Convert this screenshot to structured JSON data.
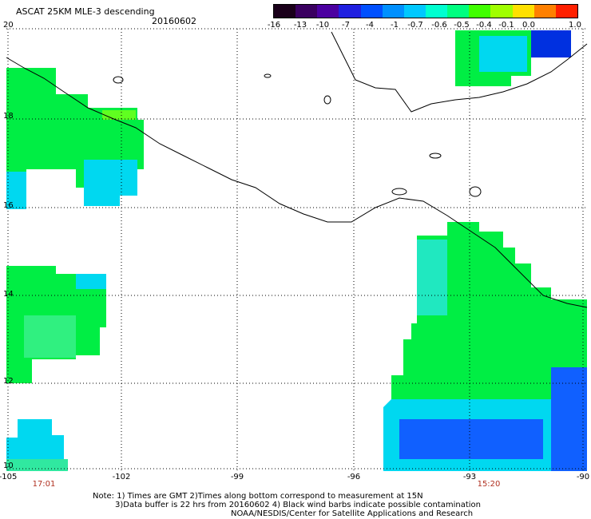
{
  "header": {
    "title": "ASCAT 25KM MLE-3 descending",
    "date": "20160602"
  },
  "colorbar": {
    "labels": [
      "-16",
      "-13",
      "-10",
      "-7",
      "-4",
      "-1",
      "-0.7",
      "-0.6",
      "-0.5",
      "-0.4",
      "-0.1",
      "0.0",
      "1.0"
    ],
    "colors": [
      "#1a001a",
      "#3a0060",
      "#4b00a0",
      "#2020e0",
      "#0050ff",
      "#0090ff",
      "#00c8ff",
      "#00ffd0",
      "#00ff80",
      "#40ff00",
      "#a0ff00",
      "#ffe000",
      "#ff8000",
      "#ff2000"
    ]
  },
  "axes": {
    "lat_labels": [
      "20",
      "18",
      "16",
      "14",
      "12",
      "10"
    ],
    "lon_labels": [
      "-105",
      "-102",
      "-99",
      "-96",
      "-93",
      "-90"
    ]
  },
  "times": {
    "left": "17:01",
    "right": "15:20"
  },
  "notes": {
    "line1": "Note: 1) Times are GMT 2)Times along bottom correspond to measurement at 15N",
    "line2": "3)Data buffer is 22 hrs from 20160602 4) Black wind barbs indicate possible contamination",
    "line3": "NOAA/NESDIS/Center for Satellite Applications and Research"
  },
  "colors": {
    "green": "#00ee44",
    "cyan": "#00d8f0",
    "blue": "#1060ff",
    "deep_blue": "#0030e0"
  }
}
